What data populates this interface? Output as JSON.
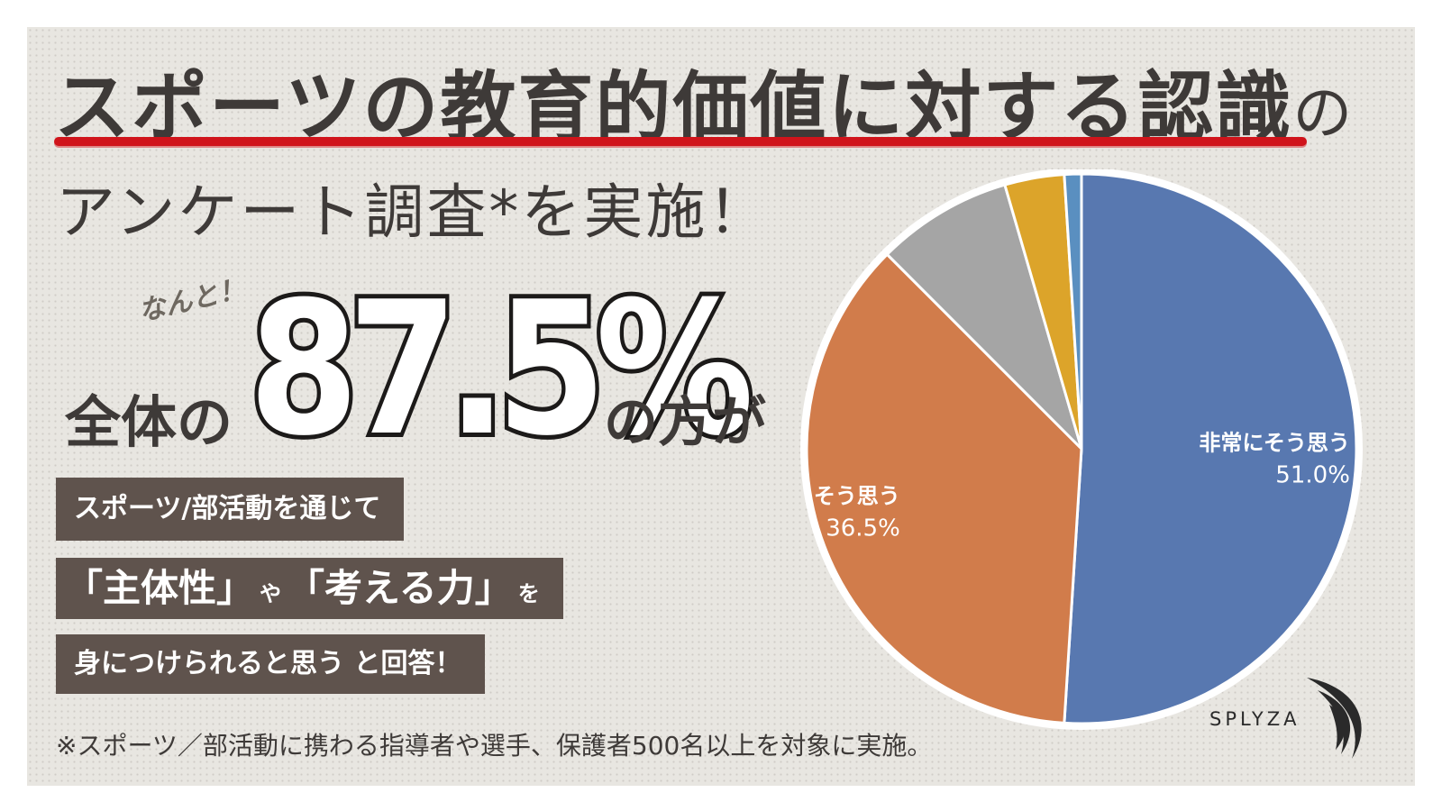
{
  "header": {
    "title_main": "スポーツの教育的価値に対する認識",
    "title_suffix": "の",
    "subtitle": "アンケート調査*を実施！"
  },
  "highlight": {
    "nanto": "なんと！",
    "prefix": "全体の",
    "big_number": "87.5%",
    "suffix": "の方が"
  },
  "statements": {
    "line1": "スポーツ/部活動を通じて",
    "line2_a": "「主体性」",
    "line2_ya": "や",
    "line2_b": "「考える力」",
    "line2_wo": "を",
    "line3": "身につけられると思う と回答！"
  },
  "footnote": "※スポーツ／部活動に携わる指導者や選手、保護者500名以上を対象に実施。",
  "logo": {
    "text": "SPLYZA"
  },
  "chart_data": {
    "type": "pie",
    "slices": [
      {
        "label": "非常にそう思う",
        "value": 51.0,
        "display": "51.0%",
        "color": "#5878b0"
      },
      {
        "label": "そう思う",
        "value": 36.5,
        "display": "36.5%",
        "color": "#d17c4b"
      },
      {
        "label": "",
        "value": 8.0,
        "display": "",
        "color": "#a5a5a5"
      },
      {
        "label": "",
        "value": 3.5,
        "display": "",
        "color": "#dca42a"
      },
      {
        "label": "",
        "value": 1.0,
        "display": "",
        "color": "#5a8fc0"
      }
    ]
  }
}
